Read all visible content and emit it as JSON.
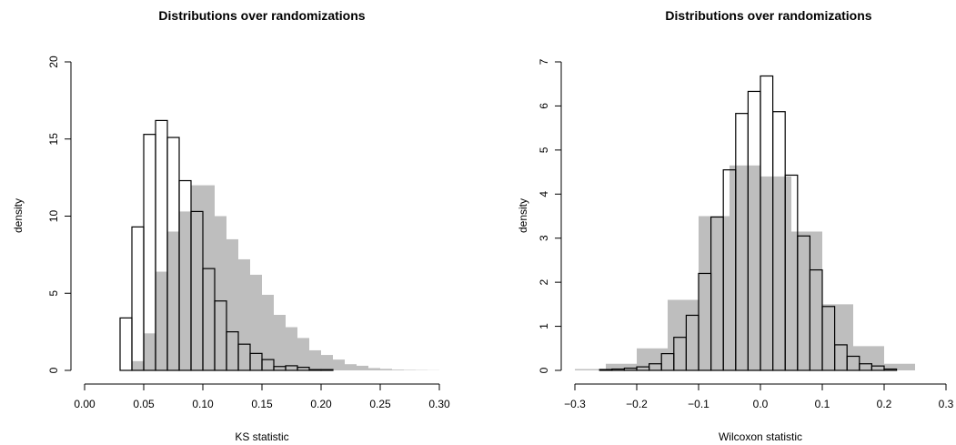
{
  "chart_data": [
    {
      "type": "histogram",
      "title": "Distributions over randomizations",
      "xlabel": "KS statistic",
      "ylabel": "density",
      "xlim": [
        0.0,
        0.3
      ],
      "ylim": [
        0,
        20
      ],
      "x_ticks": [
        "0.00",
        "0.05",
        "0.10",
        "0.15",
        "0.20",
        "0.25",
        "0.30"
      ],
      "y_ticks": [
        "0",
        "5",
        "10",
        "15",
        "20"
      ],
      "colors": {
        "filled": "#bebebe",
        "outline": "#000000"
      },
      "series": [
        {
          "style": "filled-gray",
          "bins": [
            {
              "x0": 0.04,
              "x1": 0.05,
              "y": 0.6
            },
            {
              "x0": 0.05,
              "x1": 0.06,
              "y": 2.4
            },
            {
              "x0": 0.06,
              "x1": 0.07,
              "y": 6.4
            },
            {
              "x0": 0.07,
              "x1": 0.08,
              "y": 9.0
            },
            {
              "x0": 0.08,
              "x1": 0.09,
              "y": 10.3
            },
            {
              "x0": 0.09,
              "x1": 0.1,
              "y": 12.0
            },
            {
              "x0": 0.1,
              "x1": 0.11,
              "y": 12.0
            },
            {
              "x0": 0.11,
              "x1": 0.12,
              "y": 10.0
            },
            {
              "x0": 0.12,
              "x1": 0.13,
              "y": 8.5
            },
            {
              "x0": 0.13,
              "x1": 0.14,
              "y": 7.2
            },
            {
              "x0": 0.14,
              "x1": 0.15,
              "y": 6.2
            },
            {
              "x0": 0.15,
              "x1": 0.16,
              "y": 4.9
            },
            {
              "x0": 0.16,
              "x1": 0.17,
              "y": 3.6
            },
            {
              "x0": 0.17,
              "x1": 0.18,
              "y": 2.8
            },
            {
              "x0": 0.18,
              "x1": 0.19,
              "y": 2.1
            },
            {
              "x0": 0.19,
              "x1": 0.2,
              "y": 1.3
            },
            {
              "x0": 0.2,
              "x1": 0.21,
              "y": 1.0
            },
            {
              "x0": 0.21,
              "x1": 0.22,
              "y": 0.7
            },
            {
              "x0": 0.22,
              "x1": 0.23,
              "y": 0.4
            },
            {
              "x0": 0.23,
              "x1": 0.24,
              "y": 0.3
            },
            {
              "x0": 0.24,
              "x1": 0.25,
              "y": 0.15
            },
            {
              "x0": 0.25,
              "x1": 0.26,
              "y": 0.1
            },
            {
              "x0": 0.26,
              "x1": 0.27,
              "y": 0.05
            },
            {
              "x0": 0.27,
              "x1": 0.28,
              "y": 0.03
            },
            {
              "x0": 0.28,
              "x1": 0.29,
              "y": 0.02
            },
            {
              "x0": 0.29,
              "x1": 0.3,
              "y": 0.01
            }
          ]
        },
        {
          "style": "outline",
          "bins": [
            {
              "x0": 0.03,
              "x1": 0.04,
              "y": 3.4
            },
            {
              "x0": 0.04,
              "x1": 0.05,
              "y": 9.3
            },
            {
              "x0": 0.05,
              "x1": 0.06,
              "y": 15.3
            },
            {
              "x0": 0.06,
              "x1": 0.07,
              "y": 16.2
            },
            {
              "x0": 0.07,
              "x1": 0.08,
              "y": 15.1
            },
            {
              "x0": 0.08,
              "x1": 0.09,
              "y": 12.3
            },
            {
              "x0": 0.09,
              "x1": 0.1,
              "y": 10.3
            },
            {
              "x0": 0.1,
              "x1": 0.11,
              "y": 6.6
            },
            {
              "x0": 0.11,
              "x1": 0.12,
              "y": 4.5
            },
            {
              "x0": 0.12,
              "x1": 0.13,
              "y": 2.5
            },
            {
              "x0": 0.13,
              "x1": 0.14,
              "y": 1.7
            },
            {
              "x0": 0.14,
              "x1": 0.15,
              "y": 1.1
            },
            {
              "x0": 0.15,
              "x1": 0.16,
              "y": 0.7
            },
            {
              "x0": 0.16,
              "x1": 0.17,
              "y": 0.25
            },
            {
              "x0": 0.17,
              "x1": 0.18,
              "y": 0.3
            },
            {
              "x0": 0.18,
              "x1": 0.19,
              "y": 0.2
            },
            {
              "x0": 0.19,
              "x1": 0.2,
              "y": 0.05
            },
            {
              "x0": 0.2,
              "x1": 0.21,
              "y": 0.05
            }
          ]
        }
      ]
    },
    {
      "type": "histogram",
      "title": "Distributions over randomizations",
      "xlabel": "Wilcoxon statistic",
      "ylabel": "density",
      "xlim": [
        -0.3,
        0.3
      ],
      "ylim": [
        0,
        7
      ],
      "x_ticks": [
        "−0.3",
        "−0.2",
        "−0.1",
        "0.0",
        "0.1",
        "0.2",
        "0.3"
      ],
      "y_ticks": [
        "0",
        "1",
        "2",
        "3",
        "4",
        "5",
        "6",
        "7"
      ],
      "colors": {
        "filled": "#bebebe",
        "outline": "#000000"
      },
      "series": [
        {
          "style": "filled-gray",
          "bins": [
            {
              "x0": -0.3,
              "x1": -0.25,
              "y": 0.03
            },
            {
              "x0": -0.25,
              "x1": -0.2,
              "y": 0.15
            },
            {
              "x0": -0.2,
              "x1": -0.15,
              "y": 0.5
            },
            {
              "x0": -0.15,
              "x1": -0.1,
              "y": 1.6
            },
            {
              "x0": -0.1,
              "x1": -0.05,
              "y": 3.5
            },
            {
              "x0": -0.05,
              "x1": 0.0,
              "y": 4.65
            },
            {
              "x0": 0.0,
              "x1": 0.05,
              "y": 4.4
            },
            {
              "x0": 0.05,
              "x1": 0.1,
              "y": 3.15
            },
            {
              "x0": 0.1,
              "x1": 0.15,
              "y": 1.5
            },
            {
              "x0": 0.15,
              "x1": 0.2,
              "y": 0.55
            },
            {
              "x0": 0.2,
              "x1": 0.25,
              "y": 0.15
            }
          ]
        },
        {
          "style": "outline",
          "bins": [
            {
              "x0": -0.26,
              "x1": -0.24,
              "y": 0.02
            },
            {
              "x0": -0.24,
              "x1": -0.22,
              "y": 0.03
            },
            {
              "x0": -0.22,
              "x1": -0.2,
              "y": 0.05
            },
            {
              "x0": -0.2,
              "x1": -0.18,
              "y": 0.08
            },
            {
              "x0": -0.18,
              "x1": -0.16,
              "y": 0.15
            },
            {
              "x0": -0.16,
              "x1": -0.14,
              "y": 0.38
            },
            {
              "x0": -0.14,
              "x1": -0.12,
              "y": 0.75
            },
            {
              "x0": -0.12,
              "x1": -0.1,
              "y": 1.25
            },
            {
              "x0": -0.1,
              "x1": -0.08,
              "y": 2.2
            },
            {
              "x0": -0.08,
              "x1": -0.06,
              "y": 3.48
            },
            {
              "x0": -0.06,
              "x1": -0.04,
              "y": 4.55
            },
            {
              "x0": -0.04,
              "x1": -0.02,
              "y": 5.83
            },
            {
              "x0": -0.02,
              "x1": 0.0,
              "y": 6.33
            },
            {
              "x0": 0.0,
              "x1": 0.02,
              "y": 6.68
            },
            {
              "x0": 0.02,
              "x1": 0.04,
              "y": 5.87
            },
            {
              "x0": 0.04,
              "x1": 0.06,
              "y": 4.43
            },
            {
              "x0": 0.06,
              "x1": 0.08,
              "y": 3.05
            },
            {
              "x0": 0.08,
              "x1": 0.1,
              "y": 2.28
            },
            {
              "x0": 0.1,
              "x1": 0.12,
              "y": 1.45
            },
            {
              "x0": 0.12,
              "x1": 0.14,
              "y": 0.58
            },
            {
              "x0": 0.14,
              "x1": 0.16,
              "y": 0.32
            },
            {
              "x0": 0.16,
              "x1": 0.18,
              "y": 0.15
            },
            {
              "x0": 0.18,
              "x1": 0.2,
              "y": 0.1
            },
            {
              "x0": 0.2,
              "x1": 0.22,
              "y": 0.03
            }
          ]
        }
      ]
    }
  ]
}
